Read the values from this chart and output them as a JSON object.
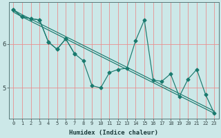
{
  "xlabel": "Humidex (Indice chaleur)",
  "bg_color": "#cce8e8",
  "grid_color": "#e89090",
  "line_color": "#1a7a6e",
  "ylim": [
    4.3,
    6.95
  ],
  "yticks": [
    5,
    6
  ],
  "xlim": [
    -0.5,
    23.5
  ],
  "figsize": [
    3.2,
    2.0
  ],
  "dpi": 100,
  "trend1_x": [
    0,
    1,
    2,
    3,
    4,
    5,
    6,
    7,
    8,
    9,
    10,
    11,
    12,
    13,
    14,
    15,
    16,
    17,
    18,
    19,
    20,
    21,
    22,
    23
  ],
  "trend1_y": [
    6.78,
    6.67,
    6.57,
    6.47,
    6.37,
    6.27,
    6.17,
    6.07,
    5.97,
    5.87,
    5.77,
    5.67,
    5.57,
    5.47,
    5.37,
    5.27,
    5.17,
    5.07,
    4.97,
    4.87,
    4.77,
    4.67,
    4.57,
    4.47
  ],
  "trend2_x": [
    0,
    1,
    2,
    3,
    4,
    5,
    6,
    7,
    8,
    9,
    10,
    11,
    12,
    13,
    14,
    15,
    16,
    17,
    18,
    19,
    20,
    21,
    22,
    23
  ],
  "trend2_y": [
    6.73,
    6.62,
    6.52,
    6.42,
    6.32,
    6.22,
    6.12,
    6.02,
    5.92,
    5.82,
    5.72,
    5.62,
    5.52,
    5.42,
    5.32,
    5.22,
    5.12,
    5.02,
    4.92,
    4.82,
    4.72,
    4.62,
    4.52,
    4.42
  ],
  "zigzag1_x": [
    0,
    1,
    2,
    3,
    4,
    5,
    6,
    7
  ],
  "zigzag1_y": [
    6.78,
    6.62,
    6.58,
    6.55,
    6.05,
    5.88,
    6.12,
    5.78
  ],
  "zigzag2_x": [
    0,
    1,
    2,
    3,
    4,
    5,
    6,
    7,
    8,
    9,
    10,
    11,
    12,
    13,
    14,
    15,
    16,
    17,
    18,
    19,
    20,
    21,
    22,
    23
  ],
  "zigzag2_y": [
    6.78,
    6.62,
    6.58,
    6.55,
    6.05,
    5.88,
    6.12,
    5.78,
    5.62,
    5.05,
    5.0,
    5.35,
    5.42,
    5.45,
    6.08,
    6.55,
    5.18,
    5.15,
    5.32,
    4.8,
    5.2,
    5.42,
    4.85,
    4.42
  ]
}
